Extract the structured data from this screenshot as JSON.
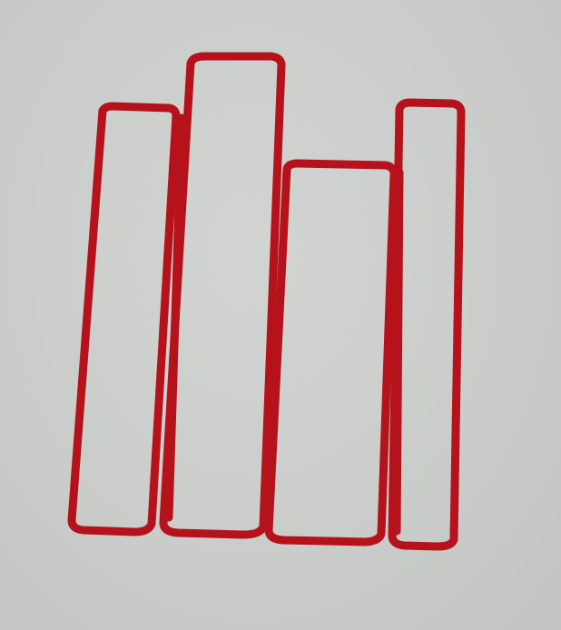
{
  "illustration": {
    "subject": "books-standing-upright",
    "book_count": 4,
    "outline_color": "#b5121b",
    "background_color": "#cacdca"
  }
}
